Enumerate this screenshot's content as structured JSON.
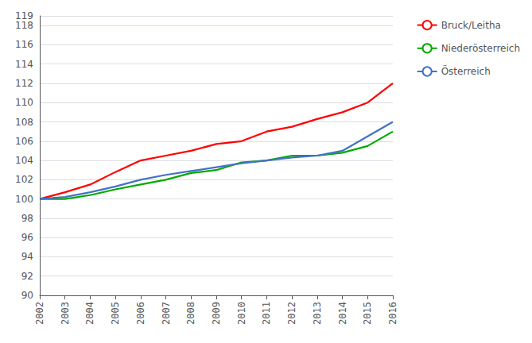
{
  "chart_data": {
    "type": "line",
    "x": [
      2002,
      2003,
      2004,
      2005,
      2006,
      2007,
      2008,
      2009,
      2010,
      2011,
      2012,
      2013,
      2014,
      2015,
      2016
    ],
    "series": [
      {
        "name": "Bruck/Leitha",
        "color": "#ff0000",
        "values": [
          100.0,
          100.7,
          101.5,
          102.8,
          104.0,
          104.5,
          105.0,
          105.7,
          106.0,
          107.0,
          107.5,
          108.3,
          109.0,
          110.0,
          112.0
        ]
      },
      {
        "name": "Niederösterreich",
        "color": "#00aa00",
        "values": [
          100.0,
          100.0,
          100.4,
          101.0,
          101.5,
          102.0,
          102.7,
          103.0,
          103.8,
          104.0,
          104.5,
          104.5,
          104.8,
          105.5,
          107.0
        ]
      },
      {
        "name": "Österreich",
        "color": "#4472c4",
        "values": [
          100.0,
          100.2,
          100.7,
          101.3,
          102.0,
          102.5,
          102.9,
          103.3,
          103.7,
          104.0,
          104.3,
          104.5,
          105.0,
          106.5,
          108.0
        ]
      }
    ],
    "xlim": [
      2002,
      2016
    ],
    "xticks": [
      2002,
      2003,
      2004,
      2005,
      2006,
      2007,
      2008,
      2009,
      2010,
      2011,
      2012,
      2013,
      2014,
      2015,
      2016
    ],
    "ylim": [
      90,
      119
    ],
    "yticks": [
      90,
      92,
      94,
      96,
      98,
      100,
      102,
      104,
      106,
      108,
      110,
      112,
      114,
      116,
      118
    ],
    "grid": true,
    "legend": "right"
  }
}
